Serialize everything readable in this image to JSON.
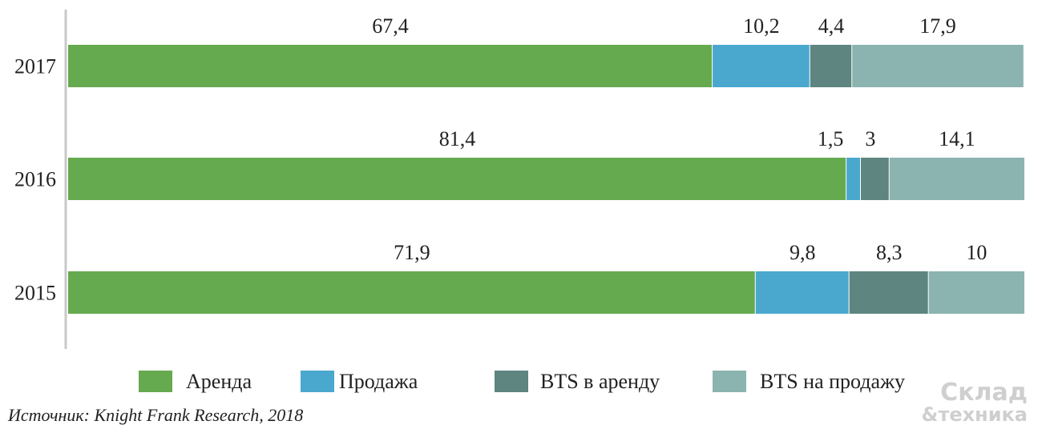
{
  "chart_data": {
    "type": "bar",
    "orientation": "horizontal",
    "stacked": true,
    "categories": [
      "2017",
      "2016",
      "2015"
    ],
    "series": [
      {
        "name": "Аренда",
        "values": [
          67.4,
          81.4,
          71.9
        ],
        "labels": [
          "67,4",
          "81,4",
          "71,9"
        ],
        "color": "#66aa4f"
      },
      {
        "name": "Продажа",
        "values": [
          10.2,
          1.5,
          9.8
        ],
        "labels": [
          "10,2",
          "1,5",
          "9,8"
        ],
        "color": "#4aa8cf"
      },
      {
        "name": "BTS в аренду",
        "values": [
          4.4,
          3,
          8.3
        ],
        "labels": [
          "4,4",
          "3",
          "8,3"
        ],
        "color": "#5e8580"
      },
      {
        "name": "BTS на продажу",
        "values": [
          17.9,
          14.1,
          10
        ],
        "labels": [
          "17,9",
          "14,1",
          "10"
        ],
        "color": "#8bb3b0"
      }
    ],
    "xlim": [
      0,
      100
    ],
    "grid": false,
    "legend_position": "bottom"
  },
  "source": "Источник: Knight Frank Research, 2018",
  "watermark": {
    "line1": "Склад",
    "line2": "&техника"
  }
}
